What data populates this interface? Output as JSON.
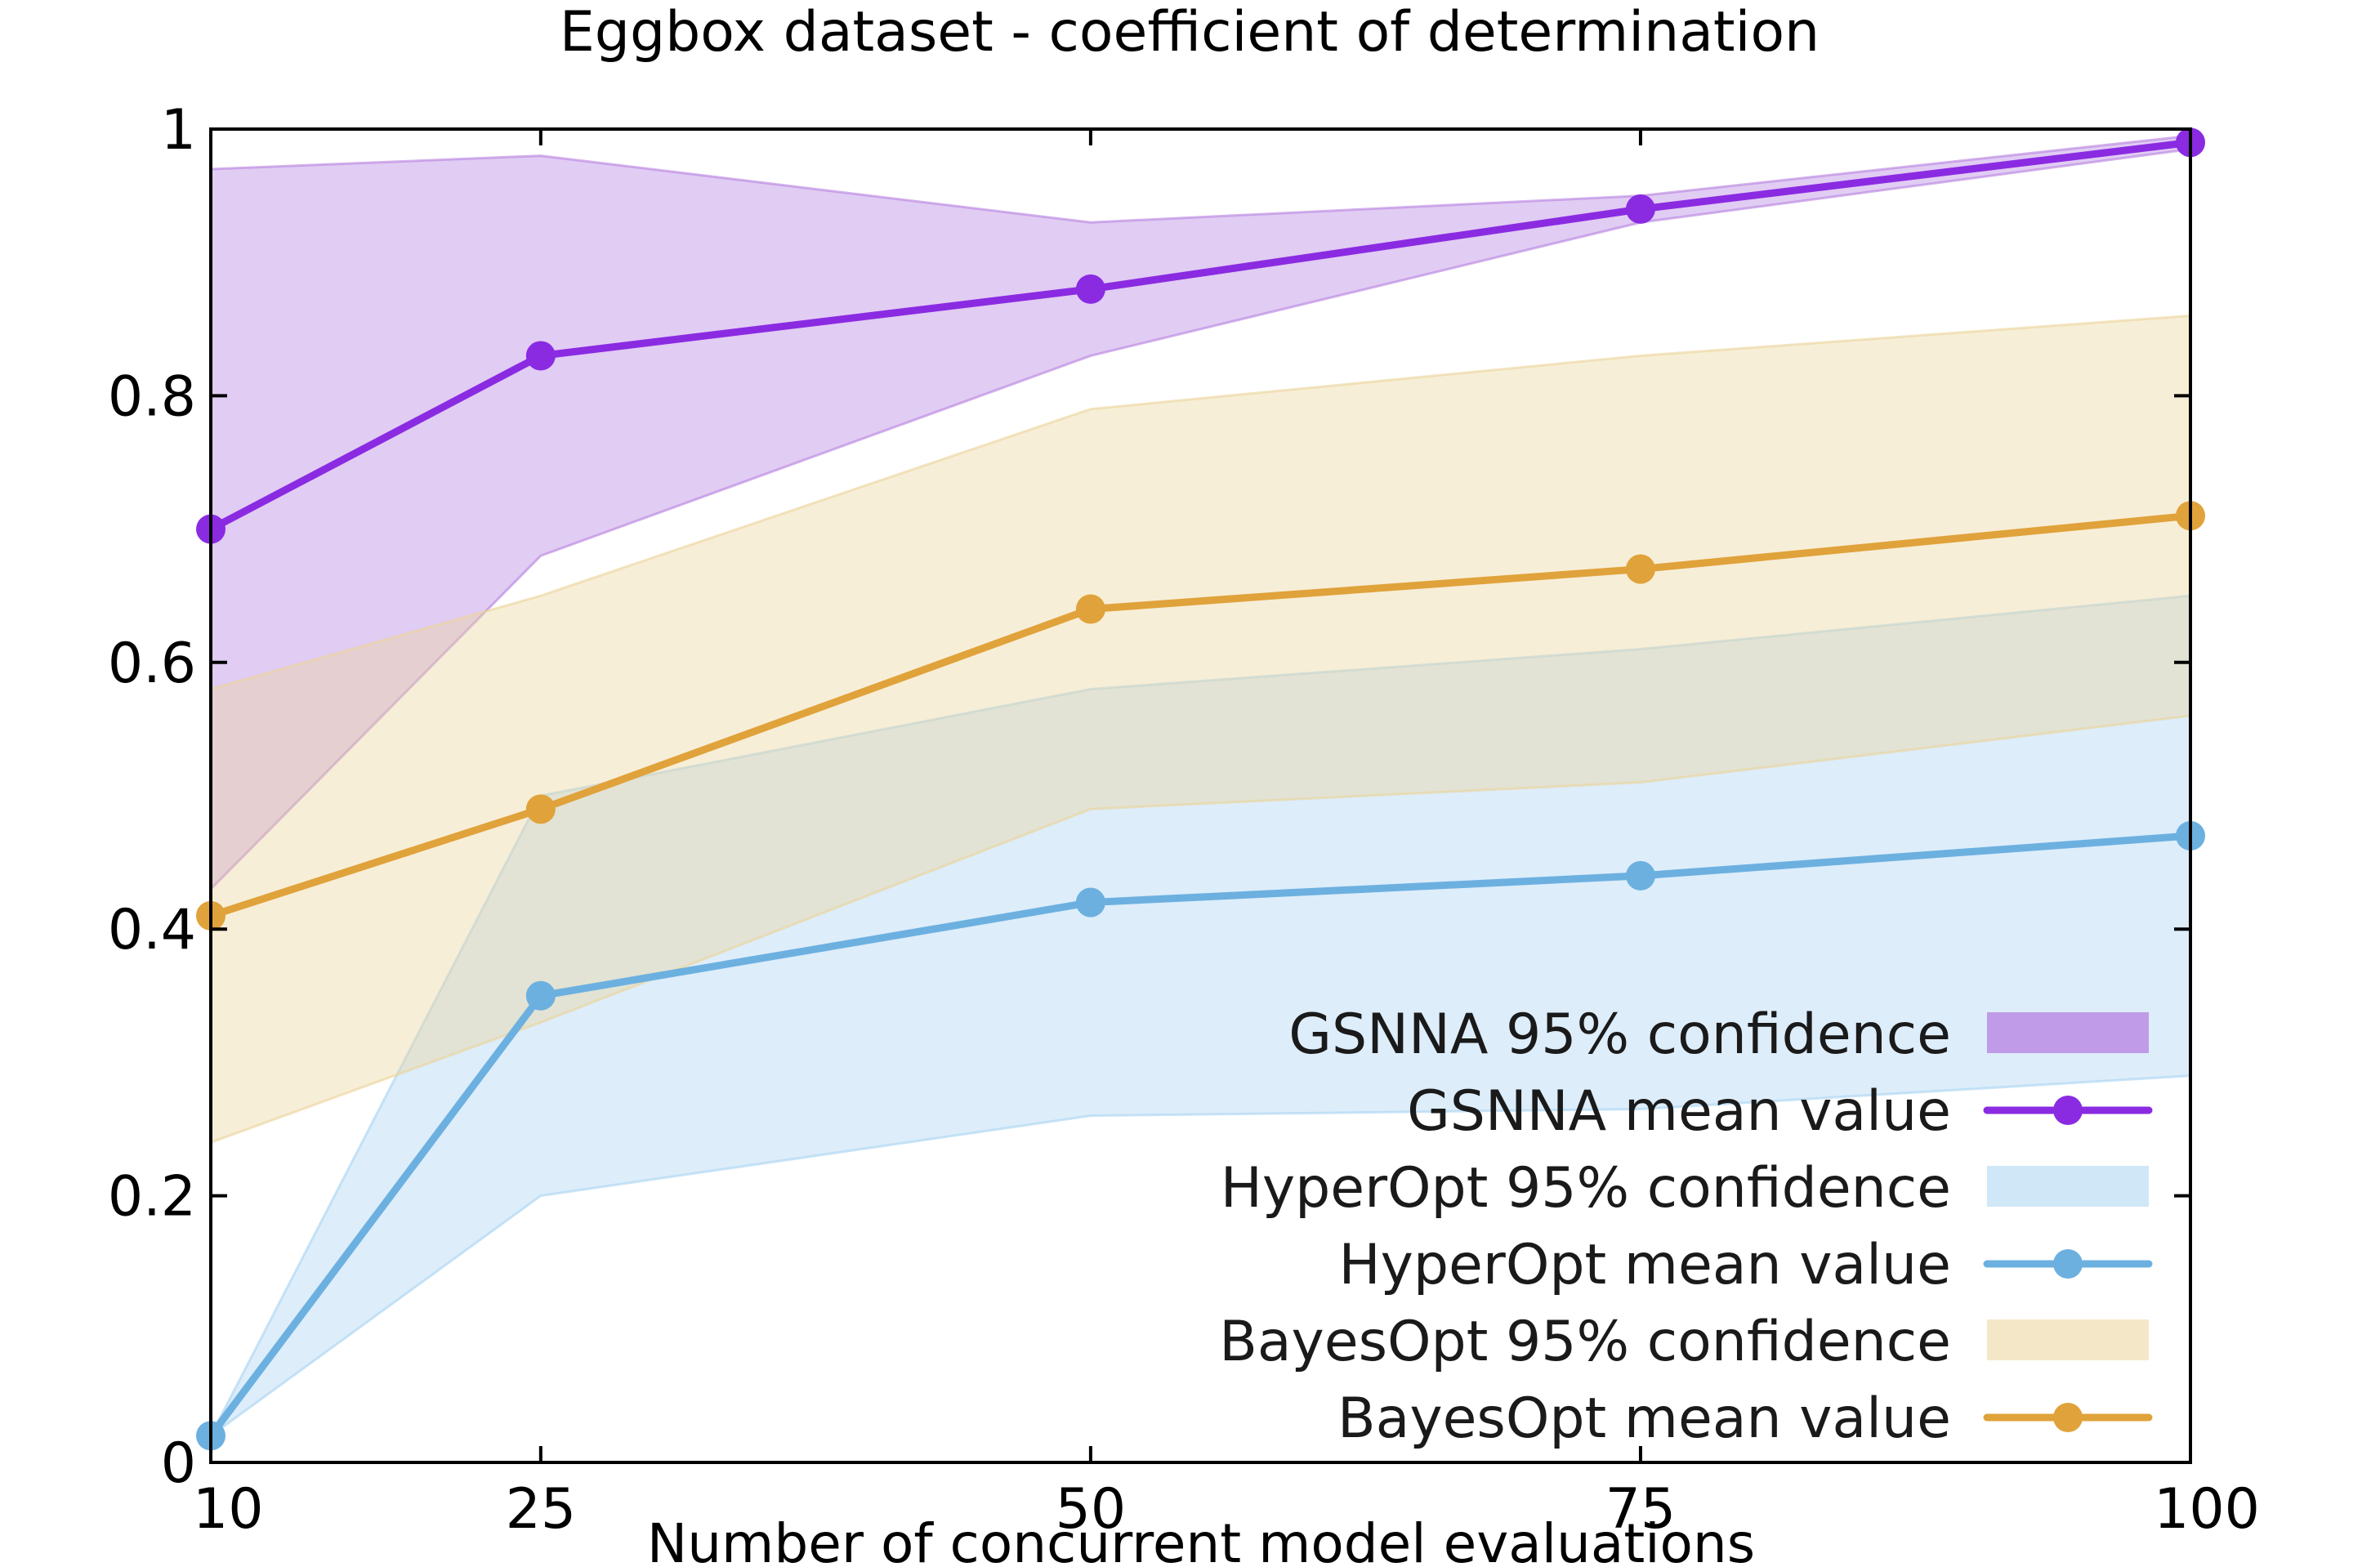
{
  "chart_data": {
    "type": "line",
    "title": "Eggbox dataset - coefficient of determination",
    "xlabel": "Number of concurrent model evaluations",
    "ylabel": "",
    "x": [
      10,
      25,
      50,
      75,
      100
    ],
    "xlim": [
      10,
      100
    ],
    "ylim": [
      0,
      1
    ],
    "x_ticks": [
      10,
      25,
      50,
      75,
      100
    ],
    "y_ticks": [
      0,
      0.2,
      0.4,
      0.6,
      0.8,
      1
    ],
    "y_tick_labels": [
      "0",
      "0.2",
      "0.4",
      "0.6",
      "0.8",
      "1"
    ],
    "grid": false,
    "legend_position": "bottom-right",
    "series": [
      {
        "name": "GSNNA mean value",
        "band_name": "GSNNA 95% confidence",
        "color": "#8a2be2",
        "band_color": "#b57fe0",
        "values": [
          0.7,
          0.83,
          0.88,
          0.94,
          0.99
        ],
        "lower": [
          0.43,
          0.68,
          0.83,
          0.93,
          0.985
        ],
        "upper": [
          0.97,
          0.98,
          0.93,
          0.95,
          0.995
        ]
      },
      {
        "name": "HyperOpt mean value",
        "band_name": "HyperOpt 95% confidence",
        "color": "#6cb0e0",
        "band_color": "#a9d3f2",
        "values": [
          0.02,
          0.35,
          0.42,
          0.44,
          0.47
        ],
        "lower": [
          0.02,
          0.2,
          0.26,
          0.265,
          0.29
        ],
        "upper": [
          0.02,
          0.5,
          0.58,
          0.61,
          0.65
        ]
      },
      {
        "name": "BayesOpt mean value",
        "band_name": "BayesOpt 95% confidence",
        "color": "#e0a23a",
        "band_color": "#ebd49a",
        "values": [
          0.41,
          0.49,
          0.64,
          0.67,
          0.71
        ],
        "lower": [
          0.24,
          0.33,
          0.49,
          0.51,
          0.56
        ],
        "upper": [
          0.58,
          0.65,
          0.79,
          0.83,
          0.86
        ]
      }
    ],
    "legend_order": [
      {
        "label": "GSNNA 95% confidence",
        "kind": "band",
        "series": 0
      },
      {
        "label": "GSNNA mean value",
        "kind": "line",
        "series": 0
      },
      {
        "label": "HyperOpt 95% confidence",
        "kind": "band",
        "series": 1
      },
      {
        "label": "HyperOpt mean value",
        "kind": "line",
        "series": 1
      },
      {
        "label": "BayesOpt 95% confidence",
        "kind": "band",
        "series": 2
      },
      {
        "label": "BayesOpt mean value",
        "kind": "line",
        "series": 2
      }
    ]
  }
}
